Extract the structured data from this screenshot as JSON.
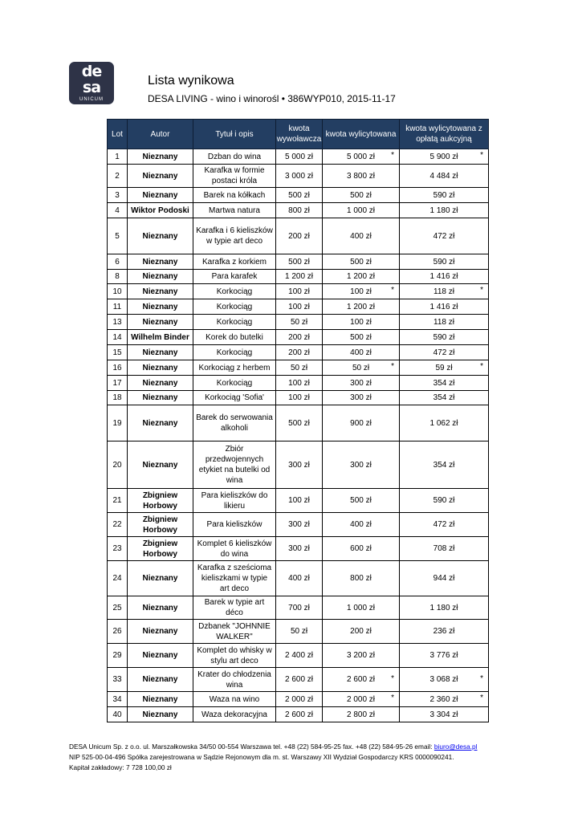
{
  "logo": {
    "text_top": "de",
    "text_bottom": "sa",
    "text_small": "UNICUM"
  },
  "title": "Lista wynikowa",
  "subtitle": "DESA LIVING - wino i winorośl • 386WYP010, 2015-11-17",
  "table": {
    "headers": [
      "Lot",
      "Autor",
      "Tytuł i opis",
      "kwota wywoławcza",
      "kwota wylicytowana",
      "kwota wylicytowana z opłatą aukcyjną"
    ],
    "rows": [
      {
        "lot": "1",
        "autor": "Nieznany",
        "tytul": "Dzban do wina",
        "wywolawcza": "5 000 zł",
        "wylicytowana": "5 000 zł",
        "z_oplata": "5 900 zł",
        "star": "*"
      },
      {
        "lot": "2",
        "autor": "Nieznany",
        "tytul": "Karafka w formie postaci króla",
        "wywolawcza": "3 000 zł",
        "wylicytowana": "3 800 zł",
        "z_oplata": "4 484 zł"
      },
      {
        "lot": "3",
        "autor": "Nieznany",
        "tytul": "Barek na kółkach",
        "wywolawcza": "500 zł",
        "wylicytowana": "500 zł",
        "z_oplata": "590 zł"
      },
      {
        "lot": "4",
        "autor": "Wiktor Podoski",
        "tytul": "Martwa natura",
        "wywolawcza": "800 zł",
        "wylicytowana": "1 000 zł",
        "z_oplata": "1 180 zł"
      },
      {
        "lot": "5",
        "autor": "Nieznany",
        "tytul": "Karafka i 6 kieliszków w typie art deco",
        "wywolawcza": "200 zł",
        "wylicytowana": "400 zł",
        "z_oplata": "472 zł"
      },
      {
        "lot": "6",
        "autor": "Nieznany",
        "tytul": "Karafka z korkiem",
        "wywolawcza": "500 zł",
        "wylicytowana": "500 zł",
        "z_oplata": "590 zł"
      },
      {
        "lot": "8",
        "autor": "Nieznany",
        "tytul": "Para karafek",
        "wywolawcza": "1 200 zł",
        "wylicytowana": "1 200 zł",
        "z_oplata": "1 416 zł"
      },
      {
        "lot": "10",
        "autor": "Nieznany",
        "tytul": "Korkociąg",
        "wywolawcza": "100 zł",
        "wylicytowana": "100 zł",
        "z_oplata": "118 zł",
        "star": "*"
      },
      {
        "lot": "11",
        "autor": "Nieznany",
        "tytul": "Korkociąg",
        "wywolawcza": "100 zł",
        "wylicytowana": "1 200 zł",
        "z_oplata": "1 416 zł"
      },
      {
        "lot": "13",
        "autor": "Nieznany",
        "tytul": "Korkociąg",
        "wywolawcza": "50 zł",
        "wylicytowana": "100 zł",
        "z_oplata": "118 zł"
      },
      {
        "lot": "14",
        "autor": "Wilhelm Binder",
        "tytul": "Korek do butelki",
        "wywolawcza": "200 zł",
        "wylicytowana": "500 zł",
        "z_oplata": "590 zł"
      },
      {
        "lot": "15",
        "autor": "Nieznany",
        "tytul": "Korkociąg",
        "wywolawcza": "200 zł",
        "wylicytowana": "400 zł",
        "z_oplata": "472 zł"
      },
      {
        "lot": "16",
        "autor": "Nieznany",
        "tytul": "Korkociąg z herbem",
        "wywolawcza": "50 zł",
        "wylicytowana": "50 zł",
        "z_oplata": "59 zł",
        "star": "*"
      },
      {
        "lot": "17",
        "autor": "Nieznany",
        "tytul": "Korkociąg",
        "wywolawcza": "100 zł",
        "wylicytowana": "300 zł",
        "z_oplata": "354 zł"
      },
      {
        "lot": "18",
        "autor": "Nieznany",
        "tytul": "Korkociąg 'Sofia'",
        "wywolawcza": "100 zł",
        "wylicytowana": "300 zł",
        "z_oplata": "354 zł"
      },
      {
        "lot": "19",
        "autor": "Nieznany",
        "tytul": "Barek do serwowania alkoholi",
        "wywolawcza": "500 zł",
        "wylicytowana": "900 zł",
        "z_oplata": "1 062 zł"
      },
      {
        "lot": "20",
        "autor": "Nieznany",
        "tytul": "Zbiór przedwojennych etykiet na butelki od wina",
        "wywolawcza": "300 zł",
        "wylicytowana": "300 zł",
        "z_oplata": "354 zł"
      },
      {
        "lot": "21",
        "autor": "Zbigniew Horbowy",
        "tytul": "Para kieliszków do likieru",
        "wywolawcza": "100 zł",
        "wylicytowana": "500 zł",
        "z_oplata": "590 zł"
      },
      {
        "lot": "22",
        "autor": "Zbigniew Horbowy",
        "tytul": "Para kieliszków",
        "wywolawcza": "300 zł",
        "wylicytowana": "400 zł",
        "z_oplata": "472 zł"
      },
      {
        "lot": "23",
        "autor": "Zbigniew Horbowy",
        "tytul": "Komplet 6 kieliszków do wina",
        "wywolawcza": "300 zł",
        "wylicytowana": "600 zł",
        "z_oplata": "708 zł"
      },
      {
        "lot": "24",
        "autor": "Nieznany",
        "tytul": "Karafka z sześcioma kieliszkami w typie art deco",
        "wywolawcza": "400 zł",
        "wylicytowana": "800 zł",
        "z_oplata": "944 zł"
      },
      {
        "lot": "25",
        "autor": "Nieznany",
        "tytul": "Barek w typie art déco",
        "wywolawcza": "700 zł",
        "wylicytowana": "1 000 zł",
        "z_oplata": "1 180 zł"
      },
      {
        "lot": "26",
        "autor": "Nieznany",
        "tytul": "Dzbanek \"JOHNNIE WALKER\"",
        "wywolawcza": "50 zł",
        "wylicytowana": "200 zł",
        "z_oplata": "236 zł"
      },
      {
        "lot": "29",
        "autor": "Nieznany",
        "tytul": "Komplet do whisky w stylu art deco",
        "wywolawcza": "2 400 zł",
        "wylicytowana": "3 200 zł",
        "z_oplata": "3 776 zł"
      },
      {
        "lot": "33",
        "autor": "Nieznany",
        "tytul": "Krater do chłodzenia wina",
        "wywolawcza": "2 600 zł",
        "wylicytowana": "2 600 zł",
        "z_oplata": "3 068 zł",
        "star": "*"
      },
      {
        "lot": "34",
        "autor": "Nieznany",
        "tytul": "Waza na wino",
        "wywolawcza": "2 000 zł",
        "wylicytowana": "2 000 zł",
        "z_oplata": "2 360 zł",
        "star": "*"
      },
      {
        "lot": "40",
        "autor": "Nieznany",
        "tytul": "Waza dekoracyjna",
        "wywolawcza": "2 600 zł",
        "wylicytowana": "2 800 zł",
        "z_oplata": "3 304 zł"
      }
    ]
  },
  "footer": {
    "line1": "DESA Unicum Sp. z o.o.  ul. Marszałkowska 34/50  00-554 Warszawa tel. +48 (22) 584-95-25 fax. +48 (22) 584-95-26  email: ",
    "email": "biuro@desa.pl",
    "line2": "NIP 525-00-04-496 Spółka zarejestrowana w Sądzie Rejonowym dla m. st. Warszawy XII Wydział Gospodarczy KRS 0000090241.",
    "line3": "Kapitał zakładowy: 7 728 100,00 zł"
  },
  "colors": {
    "header_bg": "#233e62",
    "logo_bg": "#2e3347"
  }
}
